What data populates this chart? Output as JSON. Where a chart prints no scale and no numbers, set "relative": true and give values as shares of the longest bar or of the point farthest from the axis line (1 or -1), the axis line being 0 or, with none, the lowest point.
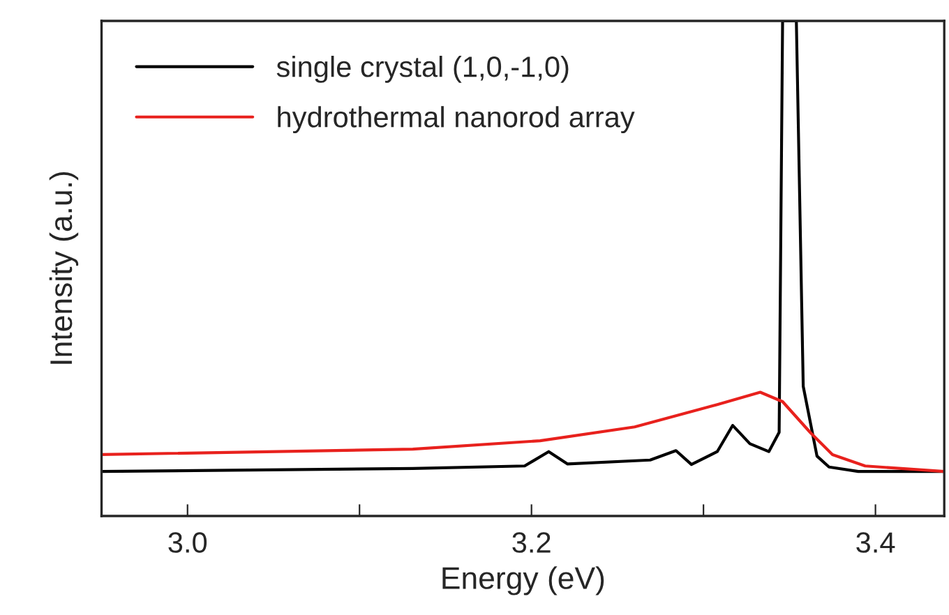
{
  "chart_data": {
    "type": "line",
    "xlabel": "Energy (eV)",
    "ylabel": "Intensity (a.u.)",
    "relative": true,
    "xlim": [
      2.95,
      3.44
    ],
    "xticks": [
      {
        "value": 3.0,
        "label": "3.0"
      },
      {
        "value": 3.1,
        "label": null
      },
      {
        "value": 3.2,
        "label": "3.2"
      },
      {
        "value": 3.3,
        "label": null
      },
      {
        "value": 3.4,
        "label": "3.4"
      }
    ],
    "legend": "top left",
    "grid": false,
    "series": [
      {
        "name": "single crystal (1,0,-1,0)",
        "color": "#000000",
        "x": [
          2.95,
          3.131,
          3.196,
          3.21,
          3.221,
          3.269,
          3.284,
          3.293,
          3.308,
          3.317,
          3.327,
          3.338,
          3.344,
          3.346,
          3.354,
          3.358,
          3.366,
          3.373,
          3.39,
          3.44
        ],
        "values": [
          0.09,
          0.096,
          0.101,
          0.13,
          0.105,
          0.113,
          0.132,
          0.104,
          0.13,
          0.183,
          0.146,
          0.13,
          0.169,
          1.0,
          1.0,
          0.262,
          0.121,
          0.099,
          0.09,
          0.09
        ]
      },
      {
        "name": "hydrothermal nanorod array",
        "color": "#e8211d",
        "x": [
          2.95,
          3.131,
          3.205,
          3.26,
          3.308,
          3.333,
          3.346,
          3.362,
          3.375,
          3.394,
          3.44
        ],
        "values": [
          0.124,
          0.135,
          0.152,
          0.18,
          0.225,
          0.25,
          0.231,
          0.169,
          0.124,
          0.101,
          0.09
        ]
      }
    ]
  }
}
